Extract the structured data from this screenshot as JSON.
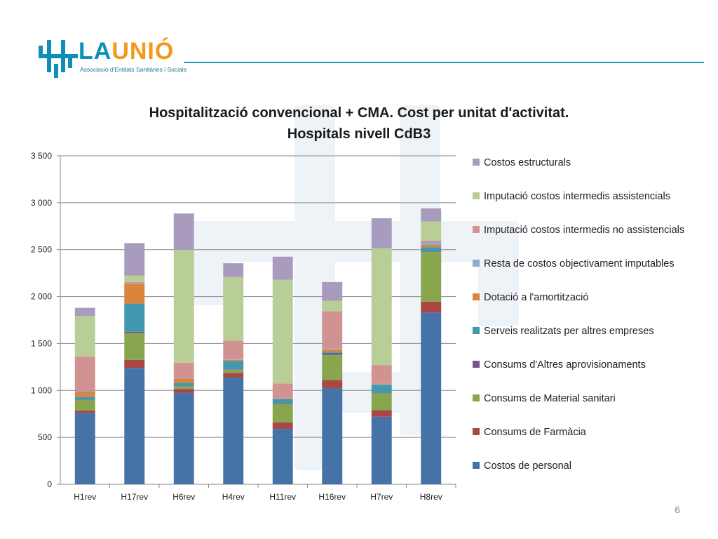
{
  "logo": {
    "wordmark_main": "LA",
    "wordmark_accent": "UNIÓ",
    "tagline": "Associació d'Entitats Sanitàries i Socials",
    "primary_color": "#0e8fb8",
    "accent_color": "#f39a1e"
  },
  "chart": {
    "title_line1": "Hospitalització convencional + CMA. Cost per unitat d'activitat.",
    "title_line2": "Hospitals nivell CdB3"
  },
  "page_number": "6",
  "chart_data": {
    "type": "bar",
    "stacked": true,
    "title": "Hospitalització convencional + CMA. Cost per unitat d'activitat. Hospitals nivell CdB3",
    "xlabel": "",
    "ylabel": "",
    "ylim": [
      0,
      3500
    ],
    "yticks": [
      0,
      500,
      1000,
      1500,
      2000,
      2500,
      3000,
      3500
    ],
    "ytick_labels": [
      "0",
      "500",
      "1 000",
      "1 500",
      "2 000",
      "2 500",
      "3 000",
      "3 500"
    ],
    "grid": true,
    "legend_position": "right",
    "categories": [
      "H1rev",
      "H17rev",
      "H6rev",
      "H4rev",
      "H11rev",
      "H16rev",
      "H7rev",
      "H8rev"
    ],
    "series": [
      {
        "name": "Costos de personal",
        "color": "#4572a7",
        "values": [
          760,
          1240,
          975,
          1140,
          590,
          1025,
          720,
          1830
        ]
      },
      {
        "name": "Consums de Farmàcia",
        "color": "#aa4643",
        "values": [
          25,
          85,
          40,
          45,
          70,
          85,
          70,
          115
        ]
      },
      {
        "name": "Consums de Material sanitari",
        "color": "#89a54e",
        "values": [
          110,
          285,
          30,
          35,
          195,
          270,
          180,
          530
        ]
      },
      {
        "name": "Consums d'Altres aprovisionaments",
        "color": "#71588f",
        "values": [
          5,
          15,
          5,
          5,
          5,
          20,
          5,
          5
        ]
      },
      {
        "name": "Serveis realitzats per altres empreses",
        "color": "#4198af",
        "values": [
          30,
          300,
          30,
          90,
          50,
          10,
          85,
          45
        ]
      },
      {
        "name": "Dotació a l'amortització",
        "color": "#db843d",
        "values": [
          60,
          210,
          45,
          10,
          5,
          25,
          5,
          25
        ]
      },
      {
        "name": "Resta de costos objectivament imputables",
        "color": "#93a9cf",
        "values": [
          10,
          5,
          5,
          5,
          5,
          10,
          5,
          30
        ]
      },
      {
        "name": "Imputació costos intermedis no assistencials",
        "color": "#d19392",
        "values": [
          360,
          15,
          165,
          200,
          155,
          400,
          200,
          15
        ]
      },
      {
        "name": "Imputació costos intermedis assistencials",
        "color": "#b9cd96",
        "values": [
          435,
          70,
          1205,
          680,
          1105,
          110,
          1245,
          205
        ]
      },
      {
        "name": "Costos estructurals",
        "color": "#a99bbd",
        "values": [
          85,
          345,
          385,
          145,
          245,
          200,
          320,
          140
        ]
      }
    ]
  }
}
